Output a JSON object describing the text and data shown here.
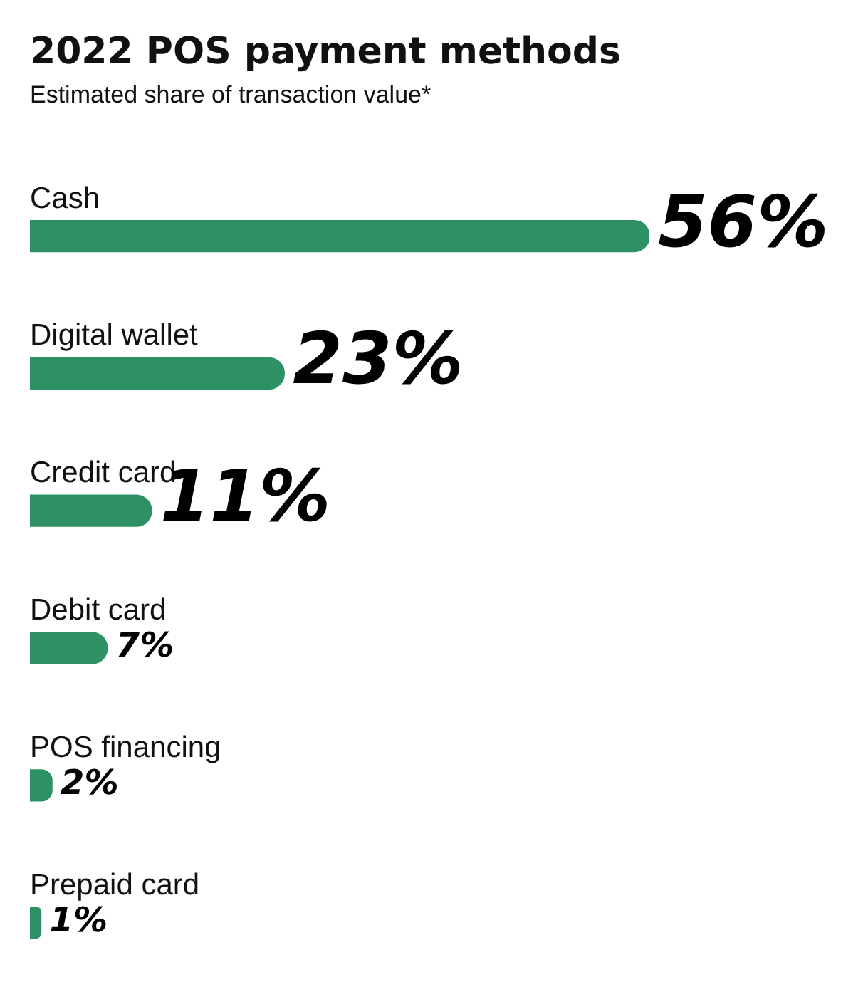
{
  "chart_data": {
    "type": "bar",
    "orientation": "horizontal",
    "title": "2022 POS payment methods",
    "subtitle": "Estimated share of transaction value*",
    "categories": [
      "Cash",
      "Digital wallet",
      "Credit card",
      "Debit card",
      "POS financing",
      "Prepaid card"
    ],
    "values": [
      56,
      23,
      11,
      7,
      2,
      1
    ],
    "color": "#2e9166",
    "value_labels": [
      "56%",
      "23%",
      "11%",
      "7%",
      "2%",
      "1%"
    ]
  }
}
